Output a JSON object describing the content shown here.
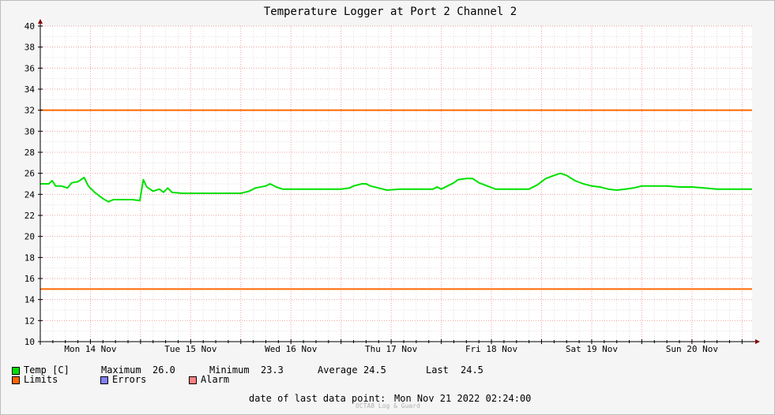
{
  "chart_data": {
    "type": "line",
    "title": "Temperature Logger at Port 2 Channel 2",
    "ylim": [
      10,
      40
    ],
    "yticks": [
      10,
      12,
      14,
      16,
      18,
      20,
      22,
      24,
      26,
      28,
      30,
      32,
      34,
      36,
      38,
      40
    ],
    "day_labels": [
      "Mon 14 Nov",
      "Tue 15 Nov",
      "Wed 16 Nov",
      "Thu 17 Nov",
      "Fri 18 Nov",
      "Sat 19 Nov",
      "Sun 20 Nov"
    ],
    "x_start": "2022-11-14 00:00",
    "x_end": "2022-11-21 02:24",
    "grid": true,
    "limits": [
      32,
      15
    ],
    "series": [
      {
        "name": "Temp [C]",
        "color": "#00e000",
        "points": [
          [
            "2022-11-14 00:00",
            25.0
          ],
          [
            "2022-11-14 02:00",
            25.0
          ],
          [
            "2022-11-14 02:50",
            25.3
          ],
          [
            "2022-11-14 03:40",
            24.8
          ],
          [
            "2022-11-14 05:00",
            24.8
          ],
          [
            "2022-11-14 06:30",
            24.6
          ],
          [
            "2022-11-14 07:30",
            25.1
          ],
          [
            "2022-11-14 09:00",
            25.2
          ],
          [
            "2022-11-14 10:30",
            25.6
          ],
          [
            "2022-11-14 11:30",
            24.8
          ],
          [
            "2022-11-14 13:00",
            24.2
          ],
          [
            "2022-11-14 15:00",
            23.6
          ],
          [
            "2022-11-14 16:20",
            23.3
          ],
          [
            "2022-11-14 17:30",
            23.5
          ],
          [
            "2022-11-14 20:00",
            23.5
          ],
          [
            "2022-11-14 22:00",
            23.5
          ],
          [
            "2022-11-14 23:50",
            23.4
          ],
          [
            "2022-11-15 00:40",
            25.4
          ],
          [
            "2022-11-15 01:30",
            24.7
          ],
          [
            "2022-11-15 03:00",
            24.3
          ],
          [
            "2022-11-15 04:30",
            24.5
          ],
          [
            "2022-11-15 05:30",
            24.2
          ],
          [
            "2022-11-15 06:30",
            24.6
          ],
          [
            "2022-11-15 07:30",
            24.2
          ],
          [
            "2022-11-15 10:00",
            24.1
          ],
          [
            "2022-11-15 15:00",
            24.1
          ],
          [
            "2022-11-15 20:00",
            24.1
          ],
          [
            "2022-11-16 00:00",
            24.1
          ],
          [
            "2022-11-16 02:00",
            24.3
          ],
          [
            "2022-11-16 03:30",
            24.6
          ],
          [
            "2022-11-16 06:00",
            24.8
          ],
          [
            "2022-11-16 07:00",
            25.0
          ],
          [
            "2022-11-16 08:30",
            24.7
          ],
          [
            "2022-11-16 10:00",
            24.5
          ],
          [
            "2022-11-16 14:00",
            24.5
          ],
          [
            "2022-11-16 20:00",
            24.5
          ],
          [
            "2022-11-17 00:00",
            24.5
          ],
          [
            "2022-11-17 02:00",
            24.6
          ],
          [
            "2022-11-17 03:00",
            24.8
          ],
          [
            "2022-11-17 05:00",
            25.0
          ],
          [
            "2022-11-17 06:00",
            25.0
          ],
          [
            "2022-11-17 07:00",
            24.8
          ],
          [
            "2022-11-17 09:00",
            24.6
          ],
          [
            "2022-11-17 11:00",
            24.4
          ],
          [
            "2022-11-17 14:00",
            24.5
          ],
          [
            "2022-11-17 17:00",
            24.5
          ],
          [
            "2022-11-17 20:00",
            24.5
          ],
          [
            "2022-11-17 22:00",
            24.5
          ],
          [
            "2022-11-17 23:00",
            24.7
          ],
          [
            "2022-11-18 00:00",
            24.5
          ],
          [
            "2022-11-18 01:30",
            24.8
          ],
          [
            "2022-11-18 03:00",
            25.1
          ],
          [
            "2022-11-18 04:00",
            25.4
          ],
          [
            "2022-11-18 06:00",
            25.5
          ],
          [
            "2022-11-18 07:30",
            25.5
          ],
          [
            "2022-11-18 09:00",
            25.1
          ],
          [
            "2022-11-18 11:00",
            24.8
          ],
          [
            "2022-11-18 13:00",
            24.5
          ],
          [
            "2022-11-18 16:00",
            24.5
          ],
          [
            "2022-11-18 19:00",
            24.5
          ],
          [
            "2022-11-18 21:00",
            24.5
          ],
          [
            "2022-11-18 23:00",
            24.9
          ],
          [
            "2022-11-19 01:00",
            25.5
          ],
          [
            "2022-11-19 03:00",
            25.8
          ],
          [
            "2022-11-19 04:30",
            26.0
          ],
          [
            "2022-11-19 06:00",
            25.8
          ],
          [
            "2022-11-19 08:00",
            25.3
          ],
          [
            "2022-11-19 10:00",
            25.0
          ],
          [
            "2022-11-19 12:00",
            24.8
          ],
          [
            "2022-11-19 14:00",
            24.7
          ],
          [
            "2022-11-19 16:00",
            24.5
          ],
          [
            "2022-11-19 18:00",
            24.4
          ],
          [
            "2022-11-19 20:00",
            24.5
          ],
          [
            "2022-11-19 22:00",
            24.6
          ],
          [
            "2022-11-20 00:00",
            24.8
          ],
          [
            "2022-11-20 03:00",
            24.8
          ],
          [
            "2022-11-20 06:00",
            24.8
          ],
          [
            "2022-11-20 09:00",
            24.7
          ],
          [
            "2022-11-20 12:00",
            24.7
          ],
          [
            "2022-11-20 15:00",
            24.6
          ],
          [
            "2022-11-20 18:00",
            24.5
          ],
          [
            "2022-11-20 21:00",
            24.5
          ],
          [
            "2022-11-21 00:00",
            24.5
          ],
          [
            "2022-11-21 02:24",
            24.5
          ]
        ]
      }
    ]
  },
  "legend": {
    "temp_label": "Temp [C]",
    "temp_color": "#00e000",
    "maximum_label": "Maximum",
    "maximum_value": "26.0",
    "minimum_label": "Minimum",
    "minimum_value": "23.3",
    "average_label": "Average",
    "average_value": "24.5",
    "last_label": "Last",
    "last_value": "24.5",
    "limits_label": "Limits",
    "limits_color": "#ff6600",
    "errors_label": "Errors",
    "errors_color": "#8080ff",
    "alarm_label": "Alarm",
    "alarm_color": "#ff8080"
  },
  "footer": {
    "last_point_label": "date of last data point:",
    "last_point_value": "Mon Nov 21 2022 02:24:00",
    "watermark": "OCTA8 Log & Guard"
  }
}
